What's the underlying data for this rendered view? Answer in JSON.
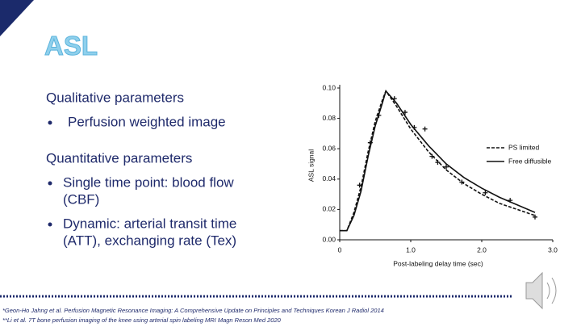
{
  "slide": {
    "title": "ASL",
    "sections": [
      {
        "heading": "Qualitative parameters",
        "items": [
          [
            "Perfusion weighted image"
          ]
        ]
      },
      {
        "heading": "Quantitative parameters",
        "items": [
          [
            "Single time point: blood flow",
            "(CBF)"
          ],
          [
            "Dynamic: arterial transit time",
            "(ATT), exchanging rate (Tex)"
          ]
        ]
      }
    ],
    "footnotes": [
      "*Geon-Ho Jahng et al. Perfusion Magnetic Resonance Imaging: A Comprehensive Update on Principles and Techniques Korean J Radiol 2014",
      "**Li et al. 7T bone perfusion imaging of the knee using arterial spin labeling MRI Magn Reson Med 2020"
    ]
  },
  "chart_data": {
    "type": "line",
    "x_label": "Post-labeling delay time (sec)",
    "y_label": "ASL signal",
    "xlim": [
      0,
      3
    ],
    "ylim": [
      0,
      0.1
    ],
    "xticks": [
      {
        "value": 0,
        "label": "0"
      },
      {
        "value": 1,
        "label": "1.0"
      },
      {
        "value": 2,
        "label": "2.0"
      },
      {
        "value": 3,
        "label": "3.0"
      }
    ],
    "yticks": [
      {
        "value": 0,
        "label": "0.00"
      },
      {
        "value": 0.02,
        "label": "0.02"
      },
      {
        "value": 0.04,
        "label": "0.04"
      },
      {
        "value": 0.06,
        "label": "0.06"
      },
      {
        "value": 0.08,
        "label": "0.08"
      },
      {
        "value": 0.1,
        "label": "0.10"
      }
    ],
    "legend": "right",
    "series": [
      {
        "name": "PS limited",
        "color": "#111111",
        "dashed": true,
        "x": [
          0,
          0.1,
          0.2,
          0.3,
          0.4,
          0.5,
          0.6,
          0.65,
          0.8,
          1.0,
          1.25,
          1.5,
          1.75,
          2.0,
          2.25,
          2.5,
          2.75
        ],
        "values": [
          0.006,
          0.006,
          0.018,
          0.035,
          0.058,
          0.078,
          0.092,
          0.098,
          0.088,
          0.073,
          0.058,
          0.046,
          0.037,
          0.03,
          0.024,
          0.02,
          0.016
        ]
      },
      {
        "name": "Free diffusible",
        "color": "#111111",
        "dashed": false,
        "x": [
          0,
          0.1,
          0.2,
          0.3,
          0.4,
          0.5,
          0.6,
          0.65,
          0.8,
          1.0,
          1.25,
          1.5,
          1.75,
          2.0,
          2.25,
          2.5,
          2.75
        ],
        "values": [
          0.006,
          0.006,
          0.016,
          0.032,
          0.055,
          0.075,
          0.09,
          0.098,
          0.09,
          0.076,
          0.062,
          0.05,
          0.041,
          0.034,
          0.028,
          0.023,
          0.018
        ]
      }
    ],
    "points": {
      "color": "#111111",
      "x": [
        0.28,
        0.43,
        0.55,
        0.77,
        0.92,
        1.05,
        1.2,
        1.3,
        1.38,
        1.5,
        1.72,
        2.05,
        2.4,
        2.75
      ],
      "values": [
        0.036,
        0.064,
        0.082,
        0.093,
        0.084,
        0.074,
        0.073,
        0.055,
        0.051,
        0.048,
        0.038,
        0.031,
        0.026,
        0.015
      ]
    }
  }
}
